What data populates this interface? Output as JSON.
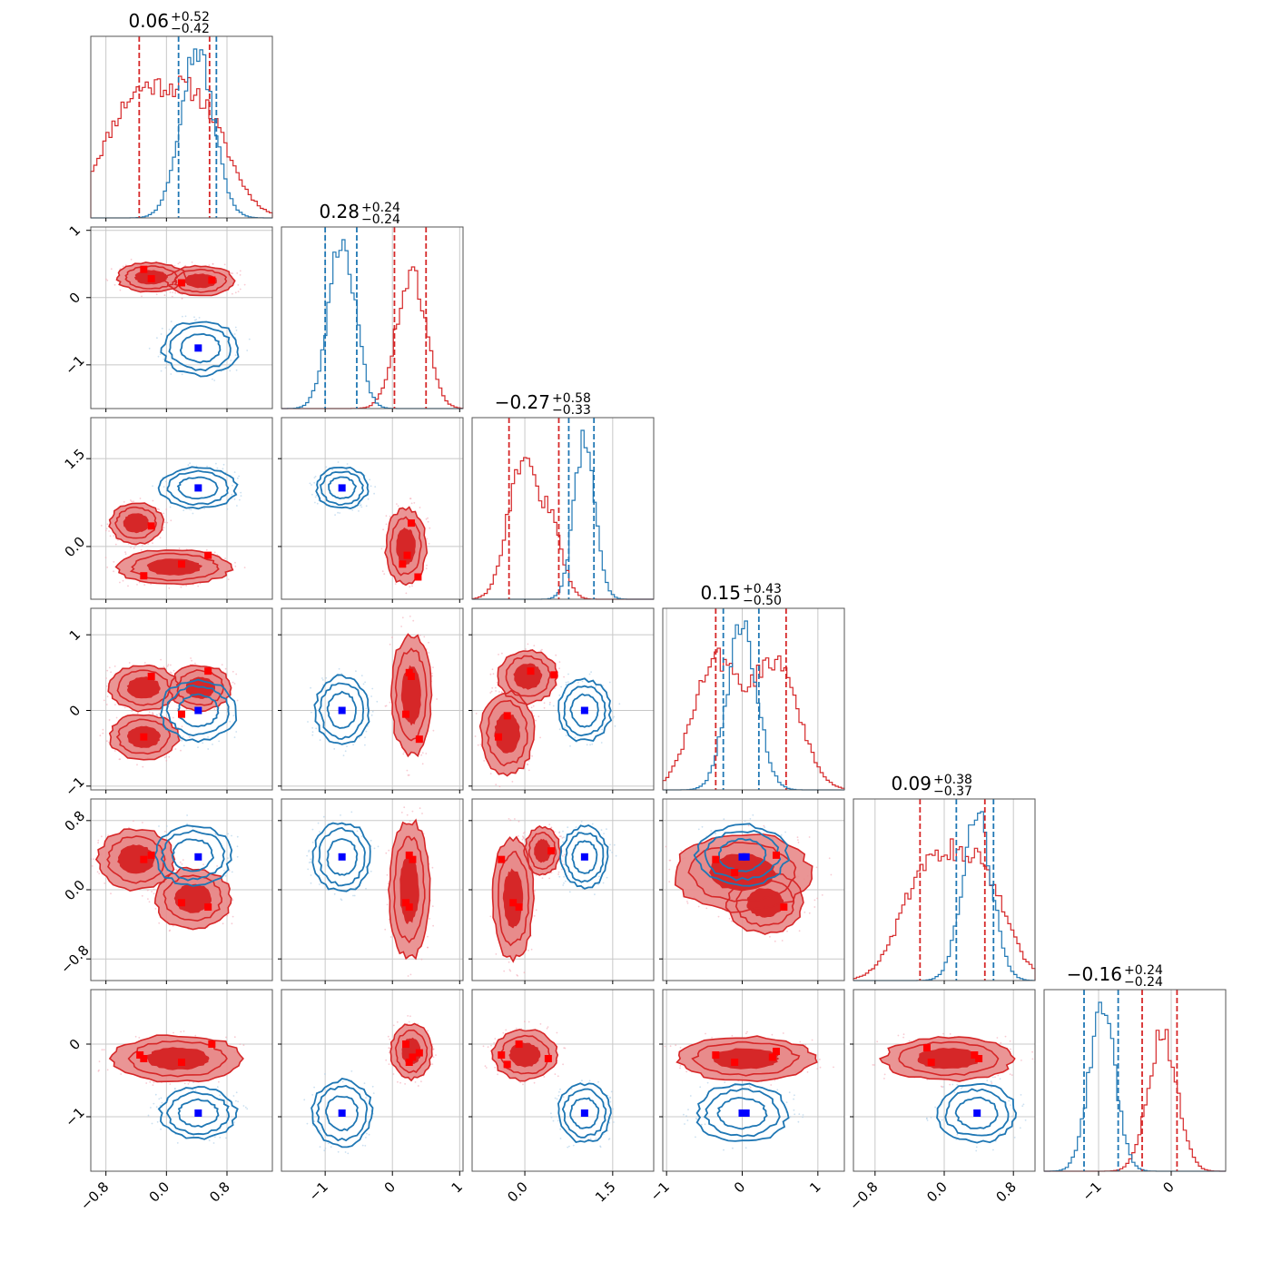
{
  "chart_data": {
    "type": "corner",
    "title": "",
    "colors": {
      "red": "#d62728",
      "red_light": "#e8898a",
      "blue": "#1f77b4",
      "marker_red": "#ff0000",
      "marker_blue": "#0000ff",
      "grid": "#c8c8c8"
    },
    "params": [
      {
        "median": "0.06",
        "plus": "+0.52",
        "minus": "−0.42",
        "range": [
          -1.0,
          1.4
        ],
        "ticks": [
          -0.8,
          0.0,
          0.8
        ],
        "tick_labels": [
          "−0.8",
          "0.0",
          "0.8"
        ],
        "red_lines": [
          -0.36,
          0.57
        ],
        "blue_lines": [
          0.16,
          0.66
        ],
        "red_modes": [
          [
            -0.38,
            0.45,
            0.6
          ],
          [
            0.45,
            0.38,
            0.5
          ]
        ],
        "blue_modes": [
          [
            0.4,
            0.22,
            1.0
          ]
        ]
      },
      {
        "median": "0.28",
        "plus": "+0.24",
        "minus": "−0.24",
        "range": [
          -1.65,
          1.05
        ],
        "ticks": [
          -1,
          0,
          1
        ],
        "tick_labels": [
          "−1",
          "0",
          "1"
        ],
        "red_lines": [
          0.03,
          0.5
        ],
        "blue_lines": [
          -1.0,
          -0.53
        ],
        "red_modes": [
          [
            0.28,
            0.22,
            1.0
          ]
        ],
        "blue_modes": [
          [
            -0.75,
            0.2,
            1.0
          ]
        ]
      },
      {
        "median": "−0.27",
        "plus": "+0.58",
        "minus": "−0.33",
        "range": [
          -0.9,
          2.2
        ],
        "ticks": [
          0.0,
          1.5
        ],
        "tick_labels": [
          "0.0",
          "1.5"
        ],
        "red_lines": [
          -0.27,
          0.58
        ],
        "blue_lines": [
          0.75,
          1.18
        ],
        "red_modes": [
          [
            -0.05,
            0.25,
            1.0
          ],
          [
            0.45,
            0.2,
            0.5
          ]
        ],
        "blue_modes": [
          [
            1.02,
            0.18,
            1.0
          ]
        ]
      },
      {
        "median": "0.15",
        "plus": "+0.43",
        "minus": "−0.50",
        "range": [
          -1.05,
          1.35
        ],
        "ticks": [
          -1,
          0,
          1
        ],
        "tick_labels": [
          "−1",
          "0",
          "1"
        ],
        "red_lines": [
          -0.35,
          0.58
        ],
        "blue_lines": [
          -0.25,
          0.22
        ],
        "red_modes": [
          [
            -0.35,
            0.3,
            0.6
          ],
          [
            0.45,
            0.3,
            0.6
          ]
        ],
        "blue_modes": [
          [
            0.0,
            0.2,
            1.0
          ]
        ]
      },
      {
        "median": "0.09",
        "plus": "+0.38",
        "minus": "−0.37",
        "range": [
          -1.05,
          1.05
        ],
        "ticks": [
          -0.8,
          0.0,
          0.8
        ],
        "tick_labels": [
          "−0.8",
          "0.0",
          "0.8"
        ],
        "red_lines": [
          -0.28,
          0.47
        ],
        "blue_lines": [
          0.14,
          0.57
        ],
        "red_modes": [
          [
            -0.2,
            0.3,
            0.6
          ],
          [
            0.4,
            0.3,
            0.6
          ]
        ],
        "blue_modes": [
          [
            0.38,
            0.17,
            1.0
          ]
        ]
      },
      {
        "median": "−0.16",
        "plus": "+0.24",
        "minus": "−0.24",
        "range": [
          -1.75,
          0.75
        ],
        "ticks": [
          -1,
          0
        ],
        "tick_labels": [
          "−1",
          "0"
        ],
        "red_lines": [
          -0.4,
          0.08
        ],
        "blue_lines": [
          -1.2,
          -0.73
        ],
        "red_modes": [
          [
            -0.12,
            0.2,
            1.0
          ]
        ],
        "blue_modes": [
          [
            -0.95,
            0.18,
            1.0
          ]
        ]
      }
    ],
    "pairs": [
      {
        "row": 1,
        "col": 0,
        "red_blobs": [
          [
            -0.2,
            0.3,
            0.45,
            0.22
          ],
          [
            0.45,
            0.25,
            0.45,
            0.22
          ]
        ],
        "blue": [
          0.45,
          -0.75,
          0.5,
          0.4
        ],
        "red_markers": [
          [
            -0.3,
            0.42
          ],
          [
            -0.2,
            0.28
          ],
          [
            0.2,
            0.22
          ],
          [
            0.6,
            0.26
          ]
        ],
        "blue_markers": [
          [
            0.42,
            -0.75
          ]
        ]
      },
      {
        "row": 2,
        "col": 0,
        "red_blobs": [
          [
            -0.4,
            0.4,
            0.35,
            0.35
          ],
          [
            0.1,
            -0.35,
            0.75,
            0.3
          ]
        ],
        "blue": [
          0.42,
          1.0,
          0.5,
          0.35
        ],
        "red_markers": [
          [
            -0.2,
            0.35
          ],
          [
            -0.3,
            -0.5
          ],
          [
            0.2,
            -0.3
          ],
          [
            0.55,
            -0.15
          ]
        ],
        "blue_markers": [
          [
            0.42,
            1.0
          ]
        ]
      },
      {
        "row": 2,
        "col": 1,
        "red_blobs": [
          [
            0.2,
            0.0,
            0.3,
            0.65
          ]
        ],
        "blue": [
          -0.75,
          1.0,
          0.38,
          0.35
        ],
        "red_markers": [
          [
            0.28,
            0.4
          ],
          [
            0.22,
            -0.15
          ],
          [
            0.15,
            -0.3
          ],
          [
            0.38,
            -0.52
          ]
        ],
        "blue_markers": [
          [
            -0.75,
            1.0
          ]
        ]
      },
      {
        "row": 3,
        "col": 0,
        "red_blobs": [
          [
            -0.3,
            0.3,
            0.45,
            0.3
          ],
          [
            -0.3,
            -0.35,
            0.45,
            0.3
          ],
          [
            0.45,
            0.3,
            0.4,
            0.3
          ]
        ],
        "blue": [
          0.42,
          0.0,
          0.5,
          0.4
        ],
        "red_markers": [
          [
            -0.2,
            0.45
          ],
          [
            -0.3,
            -0.35
          ],
          [
            0.2,
            -0.05
          ],
          [
            0.55,
            0.52
          ]
        ],
        "blue_markers": [
          [
            0.42,
            0.0
          ]
        ]
      },
      {
        "row": 3,
        "col": 1,
        "red_blobs": [
          [
            0.28,
            0.2,
            0.3,
            0.8
          ]
        ],
        "blue": [
          -0.75,
          0.0,
          0.4,
          0.45
        ],
        "red_markers": [
          [
            0.25,
            0.5
          ],
          [
            0.28,
            0.45
          ],
          [
            0.2,
            -0.05
          ],
          [
            0.4,
            -0.38
          ]
        ],
        "blue_markers": [
          [
            -0.75,
            0.0
          ]
        ]
      },
      {
        "row": 3,
        "col": 2,
        "red_blobs": [
          [
            -0.3,
            -0.3,
            0.45,
            0.55
          ],
          [
            0.05,
            0.45,
            0.5,
            0.35
          ]
        ],
        "blue": [
          1.02,
          0.0,
          0.45,
          0.4
        ],
        "red_markers": [
          [
            -0.45,
            -0.35
          ],
          [
            -0.3,
            -0.07
          ],
          [
            0.1,
            0.52
          ],
          [
            0.5,
            0.47
          ]
        ],
        "blue_markers": [
          [
            1.02,
            0.0
          ]
        ]
      },
      {
        "row": 4,
        "col": 0,
        "red_blobs": [
          [
            -0.4,
            0.35,
            0.5,
            0.35
          ],
          [
            0.35,
            -0.1,
            0.5,
            0.35
          ]
        ],
        "blue": [
          0.35,
          0.4,
          0.5,
          0.35
        ],
        "red_markers": [
          [
            -0.3,
            0.35
          ],
          [
            -0.2,
            0.4
          ],
          [
            0.2,
            -0.15
          ],
          [
            0.55,
            -0.2
          ]
        ],
        "blue_markers": [
          [
            0.42,
            0.38
          ]
        ]
      },
      {
        "row": 4,
        "col": 1,
        "red_blobs": [
          [
            0.25,
            0.0,
            0.3,
            0.8
          ]
        ],
        "blue": [
          -0.75,
          0.38,
          0.42,
          0.4
        ],
        "red_markers": [
          [
            0.25,
            0.4
          ],
          [
            0.3,
            0.35
          ],
          [
            0.2,
            -0.15
          ],
          [
            0.25,
            -0.2
          ]
        ],
        "blue_markers": [
          [
            -0.75,
            0.38
          ]
        ]
      },
      {
        "row": 4,
        "col": 2,
        "red_blobs": [
          [
            -0.2,
            -0.1,
            0.35,
            0.7
          ],
          [
            0.3,
            0.45,
            0.3,
            0.28
          ]
        ],
        "blue": [
          1.02,
          0.38,
          0.4,
          0.35
        ],
        "red_markers": [
          [
            -0.4,
            0.35
          ],
          [
            -0.2,
            -0.15
          ],
          [
            -0.1,
            -0.2
          ],
          [
            0.45,
            0.45
          ]
        ],
        "blue_markers": [
          [
            1.02,
            0.38
          ]
        ]
      },
      {
        "row": 4,
        "col": 3,
        "red_blobs": [
          [
            0.0,
            0.2,
            0.9,
            0.45
          ],
          [
            0.3,
            -0.15,
            0.5,
            0.35
          ]
        ],
        "blue": [
          0.0,
          0.4,
          0.6,
          0.35
        ],
        "red_markers": [
          [
            -0.35,
            0.35
          ],
          [
            -0.1,
            0.2
          ],
          [
            0.45,
            0.4
          ],
          [
            0.55,
            -0.2
          ]
        ],
        "blue_markers": [
          [
            0.0,
            0.38
          ],
          [
            0.05,
            0.38
          ]
        ]
      },
      {
        "row": 5,
        "col": 0,
        "red_blobs": [
          [
            0.15,
            -0.2,
            0.85,
            0.32
          ]
        ],
        "blue": [
          0.42,
          -0.95,
          0.5,
          0.35
        ],
        "red_markers": [
          [
            -0.35,
            -0.15
          ],
          [
            -0.3,
            -0.2
          ],
          [
            0.2,
            -0.25
          ],
          [
            0.6,
            0.0
          ]
        ],
        "blue_markers": [
          [
            0.42,
            -0.95
          ]
        ]
      },
      {
        "row": 5,
        "col": 1,
        "red_blobs": [
          [
            0.28,
            -0.1,
            0.3,
            0.38
          ]
        ],
        "blue": [
          -0.75,
          -0.95,
          0.45,
          0.45
        ],
        "red_markers": [
          [
            0.2,
            0.0
          ],
          [
            0.25,
            -0.25
          ],
          [
            0.3,
            -0.18
          ],
          [
            0.4,
            -0.12
          ]
        ],
        "blue_markers": [
          [
            -0.75,
            -0.95
          ]
        ]
      },
      {
        "row": 5,
        "col": 2,
        "red_blobs": [
          [
            0.0,
            -0.15,
            0.55,
            0.35
          ]
        ],
        "blue": [
          1.02,
          -0.95,
          0.45,
          0.4
        ],
        "red_markers": [
          [
            -0.4,
            -0.15
          ],
          [
            -0.3,
            -0.28
          ],
          [
            -0.1,
            0.0
          ],
          [
            0.4,
            -0.2
          ]
        ],
        "blue_markers": [
          [
            1.02,
            -0.95
          ]
        ]
      },
      {
        "row": 5,
        "col": 3,
        "red_blobs": [
          [
            0.05,
            -0.2,
            0.9,
            0.3
          ]
        ],
        "blue": [
          0.0,
          -0.95,
          0.6,
          0.4
        ],
        "red_markers": [
          [
            -0.35,
            -0.15
          ],
          [
            -0.1,
            -0.25
          ],
          [
            0.4,
            -0.18
          ],
          [
            0.45,
            -0.1
          ]
        ],
        "blue_markers": [
          [
            0.0,
            -0.95
          ],
          [
            0.05,
            -0.95
          ]
        ]
      },
      {
        "row": 5,
        "col": 4,
        "red_blobs": [
          [
            0.05,
            -0.2,
            0.75,
            0.3
          ]
        ],
        "blue": [
          0.38,
          -0.95,
          0.45,
          0.4
        ],
        "red_markers": [
          [
            -0.2,
            -0.05
          ],
          [
            -0.15,
            -0.25
          ],
          [
            0.35,
            -0.15
          ],
          [
            0.4,
            -0.2
          ]
        ],
        "blue_markers": [
          [
            0.38,
            -0.95
          ]
        ]
      }
    ]
  }
}
